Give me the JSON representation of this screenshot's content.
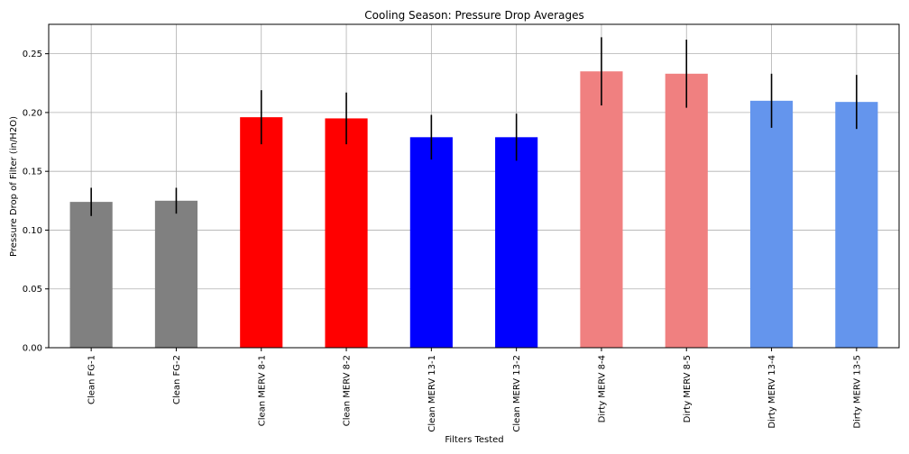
{
  "chart_data": {
    "type": "bar",
    "title": "Cooling Season: Pressure Drop Averages",
    "xlabel": "Filters Tested",
    "ylabel": "Pressure Drop of Filter (in/H2O)",
    "categories": [
      "Clean FG-1",
      "Clean FG-2",
      "Clean MERV 8-1",
      "Clean MERV 8-2",
      "Clean MERV 13-1",
      "Clean MERV 13-2",
      "Dirty MERV 8-4",
      "Dirty MERV 8-5",
      "Dirty MERV 13-4",
      "Dirty MERV 13-5"
    ],
    "values": [
      0.124,
      0.125,
      0.196,
      0.195,
      0.179,
      0.179,
      0.235,
      0.233,
      0.21,
      0.209
    ],
    "errors": [
      0.012,
      0.011,
      0.023,
      0.022,
      0.019,
      0.02,
      0.029,
      0.029,
      0.023,
      0.023
    ],
    "colors": [
      "#808080",
      "#808080",
      "#ff0000",
      "#ff0000",
      "#0000ff",
      "#0000ff",
      "#f08080",
      "#f08080",
      "#6495ed",
      "#6495ed"
    ],
    "yticks": [
      "0.00",
      "0.05",
      "0.10",
      "0.15",
      "0.20",
      "0.25"
    ],
    "ylim": [
      0,
      0.275
    ],
    "grid": true,
    "legend": false
  }
}
